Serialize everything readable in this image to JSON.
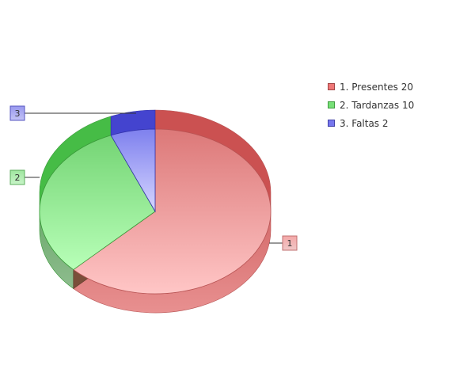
{
  "chart_data": {
    "type": "pie",
    "style": "3d",
    "categories": [
      "1",
      "2",
      "3"
    ],
    "values": [
      20,
      10,
      2
    ],
    "legend": [
      "1. Presentes 20",
      "2. Tardanzas 10",
      "3. Faltas 2"
    ],
    "colors": [
      "#e8585b",
      "#4fc44d",
      "#4040dd"
    ],
    "legend_position": "top-right"
  }
}
